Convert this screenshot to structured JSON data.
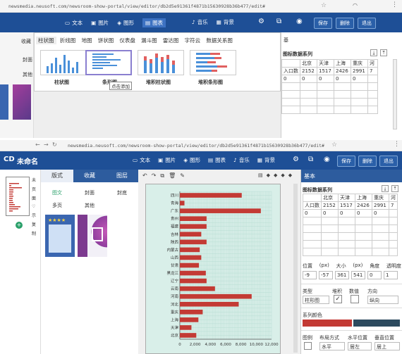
{
  "top": {
    "url": "newsmedia.neusoft.com/newsroom-show-portal/view/editor/db2d5e91361f4871b15630928b36b477/edit#",
    "nav": [
      {
        "icon": "text-icon",
        "label": "文本"
      },
      {
        "icon": "image-icon",
        "label": "图片"
      },
      {
        "icon": "shape-icon",
        "label": "图形"
      },
      {
        "icon": "chart-icon",
        "label": "图表"
      }
    ],
    "nav2": [
      {
        "icon": "music-icon",
        "label": "音乐"
      },
      {
        "icon": "background-icon",
        "label": "背景"
      }
    ],
    "actions": [
      "保存",
      "删除",
      "退出"
    ],
    "chart_tabs": [
      "柱状图",
      "折线图",
      "地图",
      "饼状图",
      "仪表盘",
      "漏斗图",
      "雷达图",
      "字符云",
      "数据关系图"
    ],
    "thumb_labels": [
      "柱状图",
      "条形图",
      "堆积柱状图",
      "堆积条形图"
    ],
    "tooltip": "点击添加",
    "left_tab": "收藏",
    "left_items": [
      "封面",
      "其他"
    ],
    "data_title": "图标数据系列",
    "headers": [
      "",
      "北京",
      "天津",
      "上海",
      "重庆",
      "河"
    ],
    "row1": [
      "入口数",
      "2152",
      "1517",
      "2426",
      "2991",
      "7"
    ],
    "row2": [
      "0",
      "0",
      "0",
      "0",
      "0",
      ""
    ],
    "basic_tab": "基"
  },
  "bottom": {
    "url": "newsmedia.neusoft.com/newsroom-show-portal/view/editor/db2d5e91361f4871b15630928b36b477/edit#",
    "logo": "CD",
    "title": "未命名",
    "nav": [
      {
        "icon": "text-icon",
        "label": "文本"
      },
      {
        "icon": "image-icon",
        "label": "图片"
      },
      {
        "icon": "shape-icon",
        "label": "图形"
      },
      {
        "icon": "chart-icon",
        "label": "图表"
      },
      {
        "icon": "music-icon",
        "label": "音乐"
      },
      {
        "icon": "background-icon",
        "label": "背景"
      }
    ],
    "actions": [
      "保存",
      "删除",
      "退出"
    ],
    "side_icons": [
      "未",
      "页",
      "面",
      "示",
      "复",
      "制"
    ],
    "panel_tabs": [
      "版式",
      "收藏",
      "图层"
    ],
    "panel_items": [
      "图文",
      "封面",
      "封底",
      "多页",
      "其他"
    ],
    "right_tab": "基本",
    "data_title": "图标数据系列",
    "headers": [
      "",
      "北京",
      "天津",
      "上海",
      "重庆",
      "河"
    ],
    "row1": [
      "人口数",
      "2152",
      "1517",
      "2426",
      "2991",
      "7"
    ],
    "row2": [
      "0",
      "0",
      "0",
      "0",
      "0",
      ""
    ],
    "pos_labels": [
      "位置",
      "(px)",
      "大小",
      "(px)",
      "角度",
      "透明度"
    ],
    "pos_values": [
      "-9",
      "-57",
      "361",
      "541",
      "0",
      "1"
    ],
    "type_labels": [
      "类型",
      "堆积",
      "数值",
      "方向"
    ],
    "type_value": "柱形图",
    "direction_value": "纵向",
    "series_color_label": "系列颜色",
    "series_colors": [
      "#c33a34",
      "#2c4a5e"
    ],
    "legend_labels": [
      "图例",
      "布局方式",
      "水平位置",
      "垂直位置"
    ],
    "legend_values": [
      "水平",
      "居左",
      "居上"
    ]
  },
  "chart_data": {
    "type": "bar",
    "orientation": "horizontal",
    "categories": [
      "四川",
      "青海",
      "广东",
      "贵州",
      "福建",
      "吉林",
      "陕西",
      "内蒙古",
      "山西",
      "甘肃",
      "黑龙江",
      "辽宁",
      "云南",
      "河南",
      "河北",
      "重庆",
      "上海",
      "天津",
      "北京"
    ],
    "values": [
      8100,
      600,
      10600,
      3500,
      3500,
      2800,
      3500,
      2600,
      2800,
      2500,
      3400,
      3500,
      4600,
      9400,
      7700,
      2991,
      2426,
      1517,
      2152
    ],
    "xticks": [
      "0",
      "2,000",
      "4,000",
      "6,000",
      "8,000",
      "10,000",
      "12,000"
    ],
    "xlim": [
      0,
      12000
    ],
    "color": "#c33a34"
  }
}
